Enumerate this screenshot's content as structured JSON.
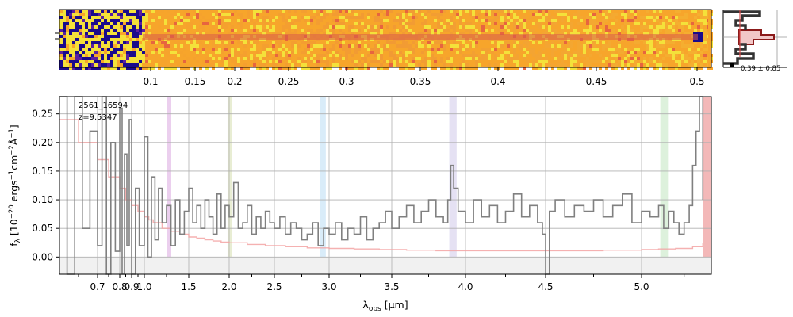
{
  "chart_data": [
    {
      "type": "heatmap",
      "description_source": "2D spectrum panel",
      "x_ticks": [
        "0.1",
        "0.15",
        "0.2",
        "0.25",
        "0.3",
        "0.35",
        "0.4",
        "0.45",
        "0.5"
      ],
      "colormap": [
        "#1a0a8c",
        "#5b1fa0",
        "#b6378b",
        "#e7653f",
        "#f7a52b",
        "#f4e13a"
      ]
    },
    {
      "type": "histogram",
      "annotation": "0.39 ± 0.85",
      "colors": {
        "fill": "#f2c7c7",
        "line": "#8b1a1a",
        "outline": "#333333",
        "marker": "#d94a4a"
      }
    },
    {
      "type": "line",
      "labels": {
        "id": "2561_16594",
        "redshift": "z=9.5347"
      },
      "xlabel": "λobs [μm]",
      "ylabel": "fλ [10⁻²⁰ ergs⁻¹cm⁻²Å⁻¹]",
      "ylim": [
        -0.03,
        0.28
      ],
      "xlim": [
        0.6,
        5.41
      ],
      "x_tick_labels": [
        "0.7",
        "0.8",
        "0.9",
        "1.0",
        "1.5",
        "2.0",
        "2.5",
        "3.0",
        "3.5",
        "4.0",
        "4.5",
        "5.0"
      ],
      "x_tick_values": [
        0.7,
        0.8,
        0.9,
        1.0,
        1.5,
        2.0,
        2.5,
        3.0,
        3.5,
        4.0,
        4.5,
        5.0
      ],
      "y_tick_labels": [
        "0.00",
        "0.05",
        "0.10",
        "0.15",
        "0.20",
        "0.25"
      ],
      "y_tick_values": [
        0.0,
        0.05,
        0.1,
        0.15,
        0.2,
        0.25
      ],
      "grid": true,
      "emission_bands": [
        {
          "x": [
            1.25,
            1.3
          ],
          "color": "#e6c3ea"
        },
        {
          "x": [
            1.98,
            2.03
          ],
          "color": "#e2e8c8"
        },
        {
          "x": [
            2.92,
            2.97
          ],
          "color": "#cfe7f7"
        },
        {
          "x": [
            3.89,
            3.94
          ],
          "color": "#dedaf0"
        },
        {
          "x": [
            5.11,
            5.16
          ],
          "color": "#d5eed3"
        }
      ],
      "red_band": {
        "x": [
          5.36,
          5.41
        ],
        "color": "#f3b8b8"
      },
      "series": [
        {
          "role": "flux",
          "color": "#808080",
          "x": [
            0.6,
            0.62,
            0.64,
            0.66,
            0.68,
            0.7,
            0.72,
            0.74,
            0.76,
            0.78,
            0.8,
            0.82,
            0.84,
            0.86,
            0.88,
            0.9,
            0.93,
            0.96,
            1.0,
            1.04,
            1.08,
            1.12,
            1.16,
            1.2,
            1.25,
            1.3,
            1.35,
            1.4,
            1.45,
            1.5,
            1.55,
            1.6,
            1.65,
            1.7,
            1.75,
            1.8,
            1.85,
            1.9,
            1.95,
            2.0,
            2.05,
            2.1,
            2.15,
            2.2,
            2.25,
            2.3,
            2.35,
            2.4,
            2.45,
            2.5,
            2.55,
            2.6,
            2.65,
            2.7,
            2.75,
            2.8,
            2.85,
            2.9,
            2.95,
            3.0,
            3.05,
            3.1,
            3.15,
            3.2,
            3.25,
            3.3,
            3.35,
            3.4,
            3.45,
            3.5,
            3.55,
            3.6,
            3.65,
            3.7,
            3.75,
            3.8,
            3.85,
            3.88,
            3.9,
            3.92,
            3.95,
            4.0,
            4.05,
            4.1,
            4.15,
            4.2,
            4.25,
            4.3,
            4.35,
            4.4,
            4.45,
            4.48,
            4.5,
            4.52,
            4.55,
            4.6,
            4.65,
            4.7,
            4.75,
            4.8,
            4.85,
            4.9,
            4.95,
            5.0,
            5.05,
            5.1,
            5.13,
            5.16,
            5.19,
            5.22,
            5.25,
            5.28,
            5.3,
            5.32,
            5.34,
            5.36
          ],
          "y": [
            0.28,
            -0.03,
            0.28,
            0.05,
            0.22,
            0.02,
            0.28,
            -0.03,
            0.2,
            0.01,
            0.26,
            -0.03,
            0.18,
            0.02,
            0.24,
            -0.03,
            0.12,
            0.02,
            0.21,
            0.0,
            0.14,
            0.03,
            0.12,
            0.06,
            0.09,
            0.02,
            0.1,
            0.04,
            0.08,
            0.12,
            0.06,
            0.09,
            0.05,
            0.1,
            0.07,
            0.04,
            0.11,
            0.05,
            0.09,
            0.07,
            0.13,
            0.05,
            0.06,
            0.09,
            0.04,
            0.07,
            0.05,
            0.08,
            0.06,
            0.05,
            0.07,
            0.04,
            0.06,
            0.05,
            0.03,
            0.04,
            0.06,
            0.02,
            0.05,
            0.04,
            0.06,
            0.03,
            0.05,
            0.04,
            0.07,
            0.03,
            0.05,
            0.06,
            0.08,
            0.05,
            0.07,
            0.09,
            0.06,
            0.08,
            0.1,
            0.07,
            0.06,
            0.1,
            0.16,
            0.12,
            0.08,
            0.06,
            0.1,
            0.07,
            0.09,
            0.06,
            0.08,
            0.11,
            0.07,
            0.09,
            0.06,
            0.04,
            -0.03,
            0.08,
            0.1,
            0.07,
            0.09,
            0.08,
            0.1,
            0.07,
            0.09,
            0.11,
            0.06,
            0.08,
            0.07,
            0.09,
            0.05,
            0.08,
            0.06,
            0.04,
            0.06,
            0.09,
            0.16,
            0.22,
            0.28,
            0.1
          ]
        },
        {
          "role": "error",
          "color": "#f3a3a3",
          "x": [
            0.6,
            0.65,
            0.7,
            0.75,
            0.8,
            0.85,
            0.9,
            0.95,
            1.0,
            1.05,
            1.1,
            1.2,
            1.3,
            1.4,
            1.5,
            1.6,
            1.7,
            1.8,
            1.9,
            2.0,
            2.2,
            2.4,
            2.6,
            2.8,
            3.0,
            3.2,
            3.4,
            3.6,
            3.8,
            4.0,
            4.2,
            4.4,
            4.6,
            4.8,
            5.0,
            5.1,
            5.2,
            5.3,
            5.36
          ],
          "y": [
            0.24,
            0.2,
            0.17,
            0.14,
            0.12,
            0.1,
            0.09,
            0.08,
            0.07,
            0.065,
            0.06,
            0.05,
            0.045,
            0.04,
            0.035,
            0.033,
            0.03,
            0.028,
            0.026,
            0.025,
            0.022,
            0.02,
            0.018,
            0.016,
            0.015,
            0.014,
            0.013,
            0.012,
            0.011,
            0.011,
            0.011,
            0.011,
            0.011,
            0.012,
            0.013,
            0.014,
            0.015,
            0.018,
            0.025
          ]
        }
      ]
    }
  ]
}
